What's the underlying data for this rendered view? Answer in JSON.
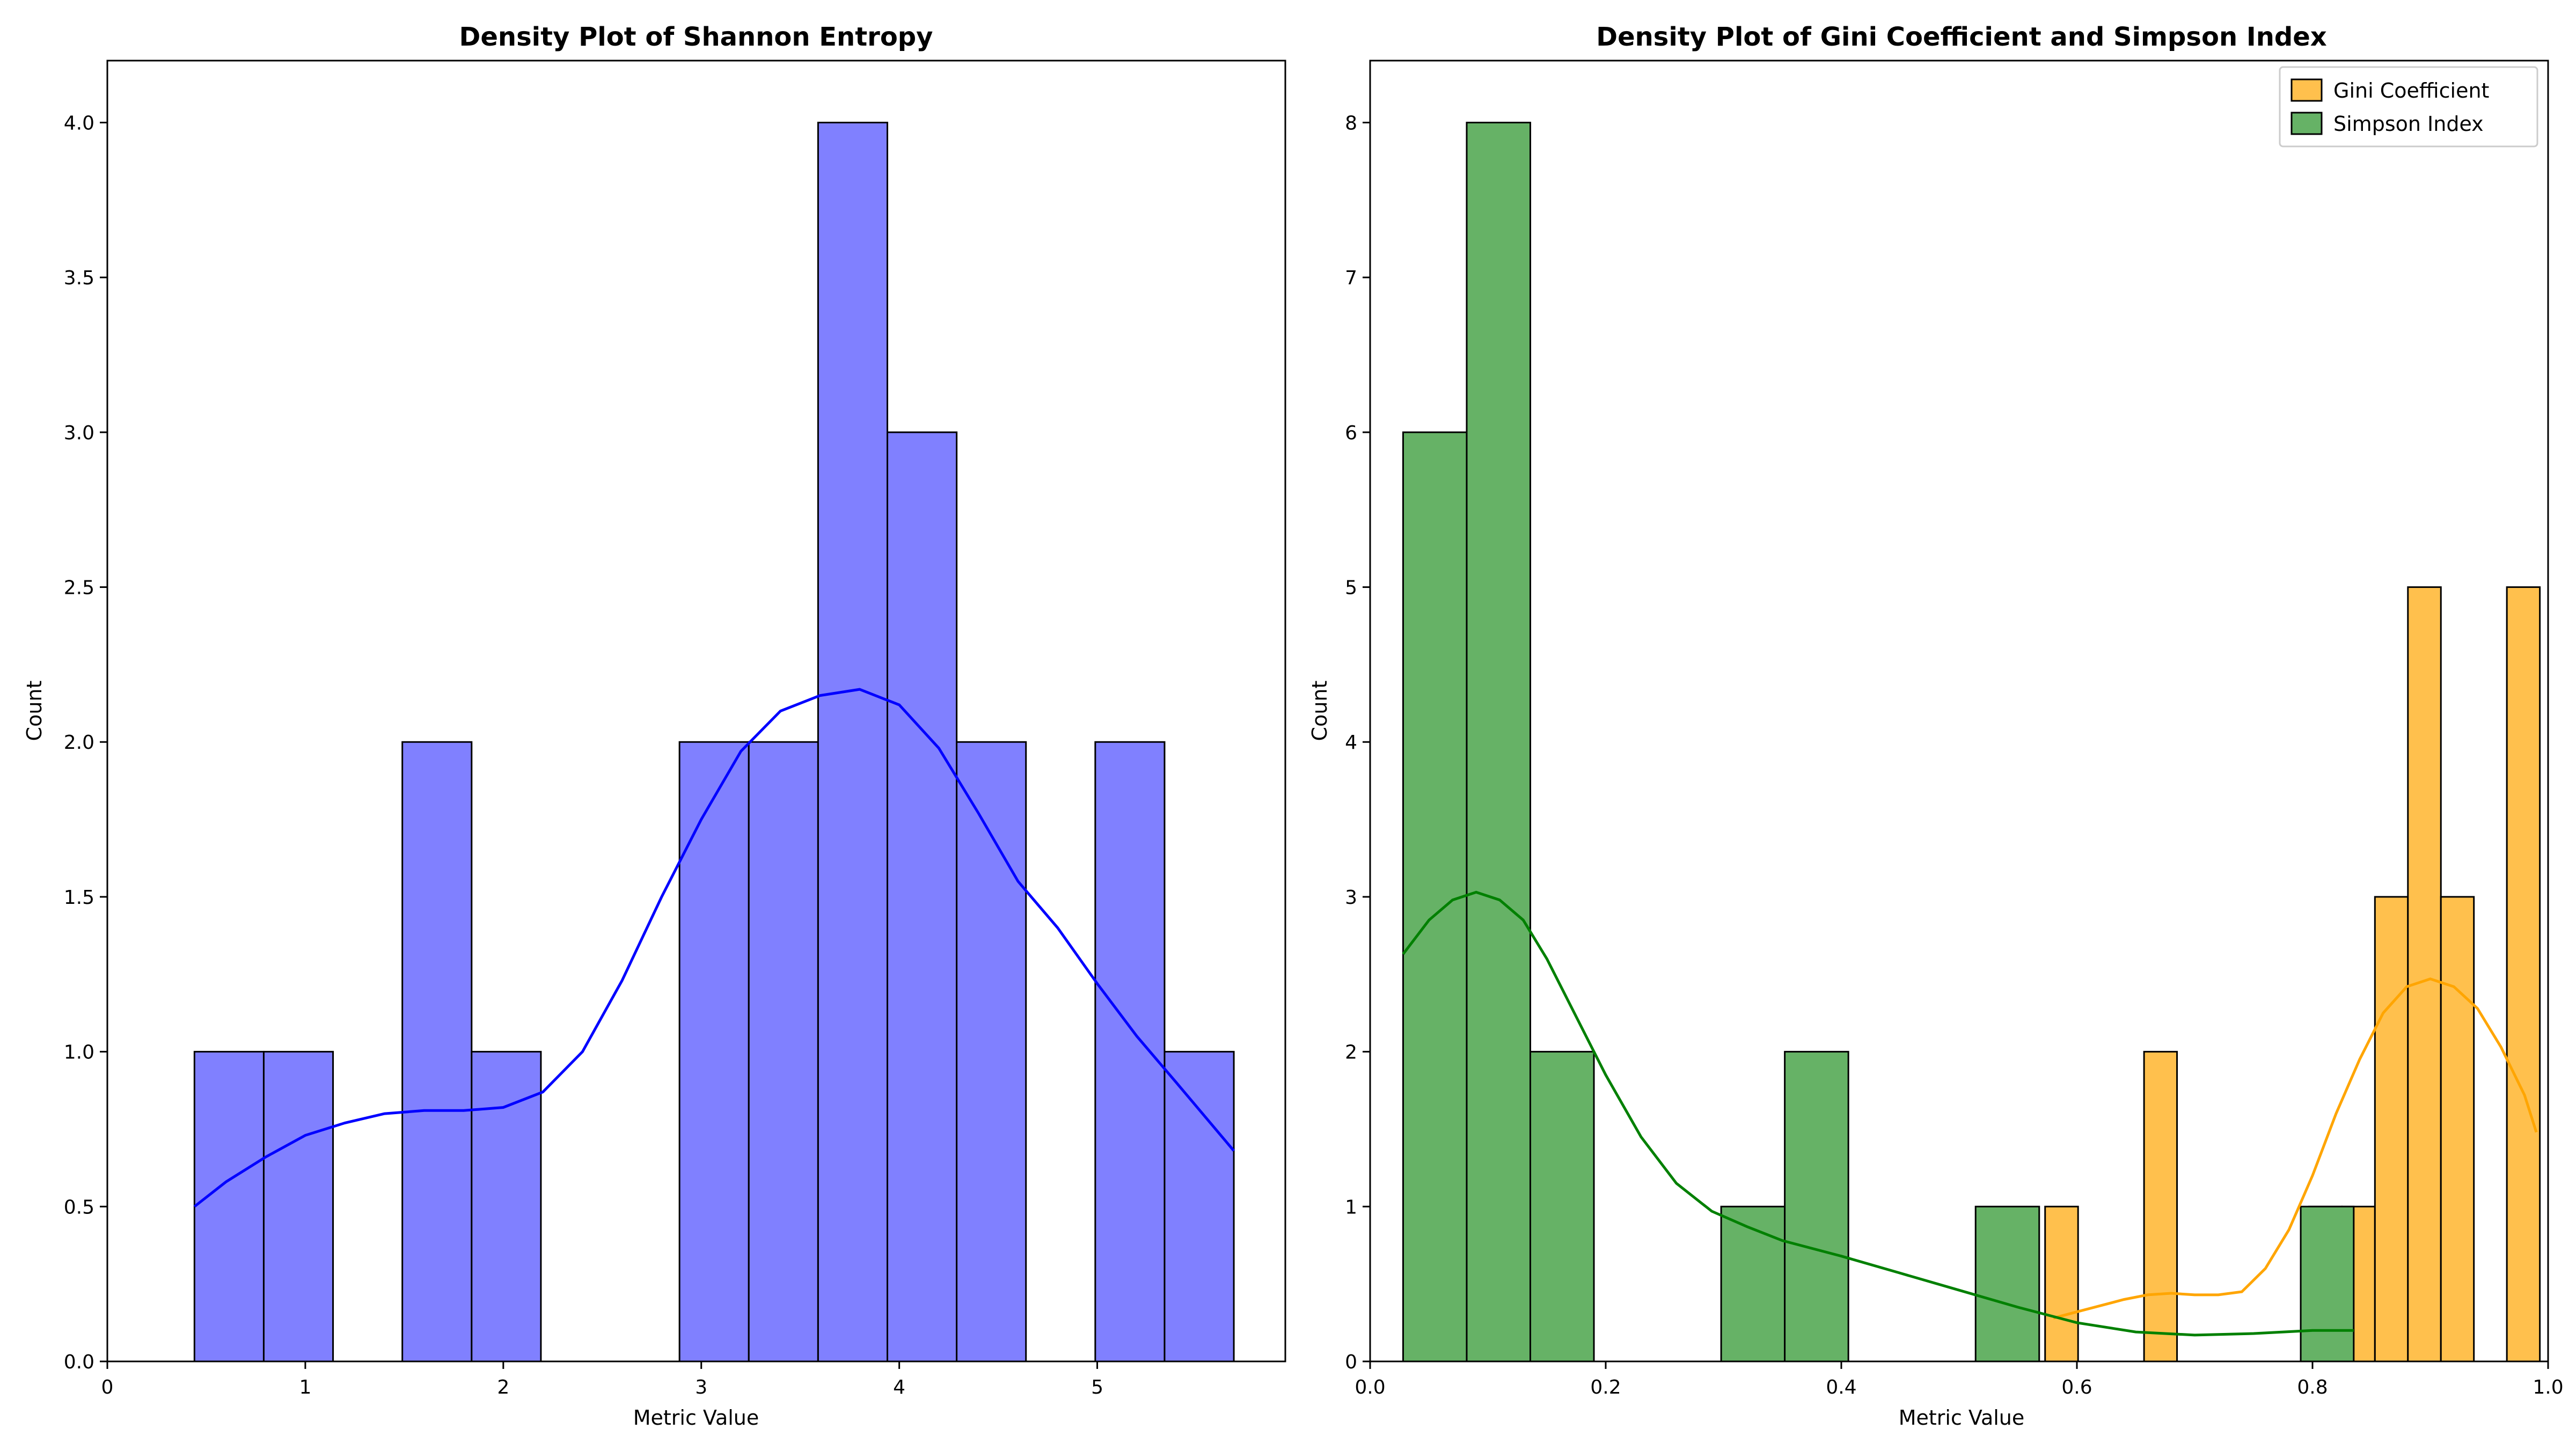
{
  "chart_data": [
    {
      "type": "histogram",
      "title": "Density Plot of Shannon Entropy",
      "xlabel": "Metric Value",
      "ylabel": "Count",
      "xlim": [
        0,
        5.95
      ],
      "ylim": [
        0,
        4.2
      ],
      "x_ticks": [
        0,
        1,
        2,
        3,
        4,
        5
      ],
      "y_ticks": [
        0.0,
        0.5,
        1.0,
        1.5,
        2.0,
        2.5,
        3.0,
        3.5,
        4.0
      ],
      "legend": null,
      "series": [
        {
          "color": "#8080ff",
          "line_color": "#0000ff",
          "bins": [
            {
              "x0": 0.44,
              "x1": 0.79,
              "count": 1
            },
            {
              "x0": 0.79,
              "x1": 1.14,
              "count": 1
            },
            {
              "x0": 1.14,
              "x1": 1.49,
              "count": 0
            },
            {
              "x0": 1.49,
              "x1": 1.84,
              "count": 2
            },
            {
              "x0": 1.84,
              "x1": 2.19,
              "count": 1
            },
            {
              "x0": 2.19,
              "x1": 2.54,
              "count": 0
            },
            {
              "x0": 2.54,
              "x1": 2.89,
              "count": 0
            },
            {
              "x0": 2.89,
              "x1": 3.24,
              "count": 2
            },
            {
              "x0": 3.24,
              "x1": 3.59,
              "count": 2
            },
            {
              "x0": 3.59,
              "x1": 3.94,
              "count": 4
            },
            {
              "x0": 3.94,
              "x1": 4.29,
              "count": 3
            },
            {
              "x0": 4.29,
              "x1": 4.64,
              "count": 2
            },
            {
              "x0": 4.64,
              "x1": 4.99,
              "count": 0
            },
            {
              "x0": 4.99,
              "x1": 5.34,
              "count": 2
            },
            {
              "x0": 5.34,
              "x1": 5.69,
              "count": 1
            }
          ],
          "kde": [
            [
              0.44,
              0.5
            ],
            [
              0.6,
              0.58
            ],
            [
              0.8,
              0.66
            ],
            [
              1.0,
              0.73
            ],
            [
              1.2,
              0.77
            ],
            [
              1.4,
              0.8
            ],
            [
              1.6,
              0.81
            ],
            [
              1.8,
              0.81
            ],
            [
              2.0,
              0.82
            ],
            [
              2.2,
              0.87
            ],
            [
              2.4,
              1.0
            ],
            [
              2.6,
              1.23
            ],
            [
              2.8,
              1.5
            ],
            [
              3.0,
              1.75
            ],
            [
              3.2,
              1.97
            ],
            [
              3.4,
              2.1
            ],
            [
              3.6,
              2.15
            ],
            [
              3.8,
              2.17
            ],
            [
              4.0,
              2.12
            ],
            [
              4.2,
              1.98
            ],
            [
              4.4,
              1.77
            ],
            [
              4.6,
              1.55
            ],
            [
              4.8,
              1.4
            ],
            [
              5.0,
              1.22
            ],
            [
              5.2,
              1.05
            ],
            [
              5.4,
              0.9
            ],
            [
              5.69,
              0.68
            ]
          ]
        }
      ]
    },
    {
      "type": "histogram",
      "title": "Density Plot of Gini Coefficient and Simpson Index",
      "xlabel": "Metric Value",
      "ylabel": "Count",
      "xlim": [
        0.0,
        1.0
      ],
      "ylim": [
        0,
        8.4
      ],
      "x_ticks": [
        0.0,
        0.2,
        0.4,
        0.6,
        0.8,
        1.0
      ],
      "y_ticks": [
        0,
        1,
        2,
        3,
        4,
        5,
        6,
        7,
        8
      ],
      "legend": "top-right",
      "series": [
        {
          "name": "Gini Coefficient",
          "color": "#ffc04d",
          "line_color": "#ffa500",
          "bins": [
            {
              "x0": 0.573,
              "x1": 0.601,
              "count": 1
            },
            {
              "x0": 0.657,
              "x1": 0.685,
              "count": 2
            },
            {
              "x0": 0.797,
              "x1": 0.825,
              "count": 1
            },
            {
              "x0": 0.825,
              "x1": 0.853,
              "count": 1
            },
            {
              "x0": 0.853,
              "x1": 0.881,
              "count": 3
            },
            {
              "x0": 0.881,
              "x1": 0.909,
              "count": 5
            },
            {
              "x0": 0.909,
              "x1": 0.937,
              "count": 3
            },
            {
              "x0": 0.965,
              "x1": 0.993,
              "count": 5
            }
          ],
          "kde": [
            [
              0.58,
              0.28
            ],
            [
              0.6,
              0.32
            ],
            [
              0.62,
              0.36
            ],
            [
              0.64,
              0.4
            ],
            [
              0.66,
              0.43
            ],
            [
              0.68,
              0.44
            ],
            [
              0.7,
              0.43
            ],
            [
              0.72,
              0.43
            ],
            [
              0.74,
              0.45
            ],
            [
              0.76,
              0.6
            ],
            [
              0.78,
              0.85
            ],
            [
              0.8,
              1.2
            ],
            [
              0.82,
              1.6
            ],
            [
              0.84,
              1.95
            ],
            [
              0.86,
              2.25
            ],
            [
              0.88,
              2.42
            ],
            [
              0.9,
              2.47
            ],
            [
              0.92,
              2.42
            ],
            [
              0.94,
              2.28
            ],
            [
              0.96,
              2.03
            ],
            [
              0.98,
              1.72
            ],
            [
              0.99,
              1.48
            ]
          ]
        },
        {
          "name": "Simpson Index",
          "color": "#66b266",
          "line_color": "#008000",
          "bins": [
            {
              "x0": 0.028,
              "x1": 0.082,
              "count": 6
            },
            {
              "x0": 0.082,
              "x1": 0.136,
              "count": 8
            },
            {
              "x0": 0.136,
              "x1": 0.19,
              "count": 2
            },
            {
              "x0": 0.298,
              "x1": 0.352,
              "count": 1
            },
            {
              "x0": 0.352,
              "x1": 0.406,
              "count": 2
            },
            {
              "x0": 0.514,
              "x1": 0.568,
              "count": 1
            },
            {
              "x0": 0.79,
              "x1": 0.835,
              "count": 1
            }
          ],
          "kde": [
            [
              0.028,
              2.63
            ],
            [
              0.05,
              2.85
            ],
            [
              0.07,
              2.98
            ],
            [
              0.09,
              3.03
            ],
            [
              0.11,
              2.98
            ],
            [
              0.13,
              2.85
            ],
            [
              0.15,
              2.6
            ],
            [
              0.17,
              2.3
            ],
            [
              0.2,
              1.85
            ],
            [
              0.23,
              1.45
            ],
            [
              0.26,
              1.15
            ],
            [
              0.29,
              0.97
            ],
            [
              0.32,
              0.87
            ],
            [
              0.35,
              0.78
            ],
            [
              0.4,
              0.68
            ],
            [
              0.45,
              0.57
            ],
            [
              0.5,
              0.46
            ],
            [
              0.55,
              0.35
            ],
            [
              0.6,
              0.25
            ],
            [
              0.65,
              0.19
            ],
            [
              0.7,
              0.17
            ],
            [
              0.75,
              0.18
            ],
            [
              0.8,
              0.2
            ],
            [
              0.835,
              0.2
            ]
          ]
        }
      ]
    }
  ]
}
